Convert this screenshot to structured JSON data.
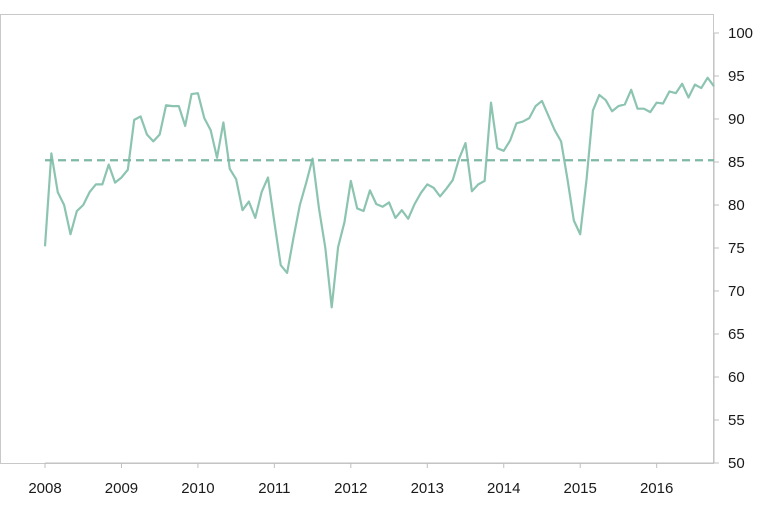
{
  "chart_data": {
    "type": "line",
    "title": "",
    "xlabel": "",
    "ylabel": "",
    "x_tick_labels": [
      "2008",
      "2009",
      "2010",
      "2011",
      "2012",
      "2013",
      "2014",
      "2015",
      "2016"
    ],
    "y_tick_labels": [
      "50",
      "55",
      "60",
      "65",
      "70",
      "75",
      "80",
      "85",
      "90",
      "95",
      "100"
    ],
    "ylim": [
      50,
      100
    ],
    "xlim": [
      "2008-01",
      "2016-10"
    ],
    "y_axis_side": "right",
    "grid": false,
    "legend": "none",
    "colors": {
      "line": "#8cc4b0",
      "reference": "#7fb8a4",
      "axis": "#bfbfbf",
      "frame": "#c8c8c8"
    },
    "series": [
      {
        "style": "solid",
        "x": [
          "2008-01",
          "2008-02",
          "2008-03",
          "2008-04",
          "2008-05",
          "2008-06",
          "2008-07",
          "2008-08",
          "2008-09",
          "2008-10",
          "2008-11",
          "2008-12",
          "2009-01",
          "2009-02",
          "2009-03",
          "2009-04",
          "2009-05",
          "2009-06",
          "2009-07",
          "2009-08",
          "2009-09",
          "2009-10",
          "2009-11",
          "2009-12",
          "2010-01",
          "2010-02",
          "2010-03",
          "2010-04",
          "2010-05",
          "2010-06",
          "2010-07",
          "2010-08",
          "2010-09",
          "2010-10",
          "2010-11",
          "2010-12",
          "2011-01",
          "2011-02",
          "2011-03",
          "2011-04",
          "2011-05",
          "2011-06",
          "2011-07",
          "2011-08",
          "2011-09",
          "2011-10",
          "2011-11",
          "2011-12",
          "2012-01",
          "2012-02",
          "2012-03",
          "2012-04",
          "2012-05",
          "2012-06",
          "2012-07",
          "2012-08",
          "2012-09",
          "2012-10",
          "2012-11",
          "2012-12",
          "2013-01",
          "2013-02",
          "2013-03",
          "2013-04",
          "2013-05",
          "2013-06",
          "2013-07",
          "2013-08",
          "2013-09",
          "2013-10",
          "2013-11",
          "2013-12",
          "2014-01",
          "2014-02",
          "2014-03",
          "2014-04",
          "2014-05",
          "2014-06",
          "2014-07",
          "2014-08",
          "2014-09",
          "2014-10",
          "2014-11",
          "2014-12",
          "2015-01",
          "2015-02",
          "2015-03",
          "2015-04",
          "2015-05",
          "2015-06",
          "2015-07",
          "2015-08",
          "2015-09",
          "2015-10",
          "2015-11",
          "2015-12",
          "2016-01",
          "2016-02",
          "2016-03",
          "2016-04",
          "2016-05",
          "2016-06",
          "2016-07",
          "2016-08",
          "2016-09",
          "2016-10"
        ],
        "values": [
          75.2,
          86.0,
          81.5,
          80.0,
          76.6,
          79.3,
          80.0,
          81.5,
          82.4,
          82.4,
          84.7,
          82.6,
          83.2,
          84.1,
          89.9,
          90.3,
          88.2,
          87.4,
          88.2,
          91.6,
          91.5,
          91.5,
          89.2,
          92.9,
          93.0,
          90.1,
          88.7,
          85.5,
          89.6,
          84.2,
          83.0,
          79.4,
          80.4,
          78.5,
          81.5,
          83.2,
          78.0,
          73.0,
          72.1,
          76.2,
          80.0,
          82.6,
          85.4,
          79.6,
          75.0,
          68.1,
          75.1,
          78.0,
          82.8,
          79.6,
          79.3,
          81.7,
          80.1,
          79.8,
          80.3,
          78.5,
          79.4,
          78.4,
          80.1,
          81.4,
          82.4,
          82.0,
          81.0,
          81.9,
          82.9,
          85.4,
          87.2,
          81.6,
          82.4,
          82.8,
          91.9,
          86.6,
          86.3,
          87.5,
          89.5,
          89.7,
          90.1,
          91.5,
          92.1,
          90.4,
          88.7,
          87.4,
          83.0,
          78.2,
          76.6,
          83.0,
          91.0,
          92.8,
          92.2,
          90.9,
          91.5,
          91.7,
          93.4,
          91.2,
          91.2,
          90.8,
          91.9,
          91.8,
          93.2,
          93.0,
          94.1,
          92.5,
          94.0,
          93.6,
          94.8,
          93.8
        ]
      },
      {
        "style": "dashed",
        "x": [
          "2008-01",
          "2016-10"
        ],
        "values": [
          85.2,
          85.2
        ]
      }
    ]
  }
}
